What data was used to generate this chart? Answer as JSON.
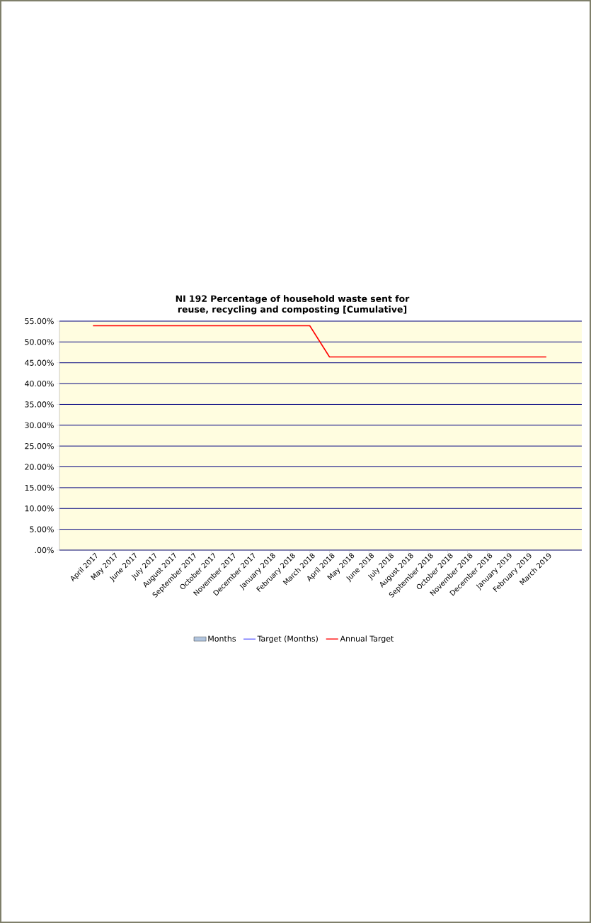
{
  "chart_data": {
    "type": "line",
    "title": "NI 192 Percentage of household waste sent for reuse, recycling and composting [Cumulative]",
    "categories": [
      "April 2017",
      "May 2017",
      "June 2017",
      "July 2017",
      "August 2017",
      "September 2017",
      "October 2017",
      "November 2017",
      "December 2017",
      "January 2018",
      "February 2018",
      "March 2018",
      "April 2018",
      "May 2018",
      "June 2018",
      "July 2018",
      "August 2018",
      "September 2018",
      "October 2018",
      "November 2018",
      "December 2018",
      "January 2019",
      "February 2019",
      "March 2019"
    ],
    "series": [
      {
        "name": "Months",
        "type": "bar",
        "color": "#b0c4de",
        "values": [
          null,
          null,
          null,
          null,
          null,
          null,
          null,
          null,
          null,
          null,
          null,
          null,
          null,
          null,
          null,
          null,
          null,
          null,
          null,
          null,
          null,
          null,
          null,
          null
        ]
      },
      {
        "name": "Target (Months)",
        "color": "#0000ff",
        "values": [
          null,
          null,
          null,
          null,
          null,
          null,
          null,
          null,
          null,
          null,
          null,
          null,
          null,
          null,
          null,
          null,
          null,
          null,
          null,
          null,
          null,
          null,
          null,
          null
        ]
      },
      {
        "name": "Annual Target",
        "color": "#ff0000",
        "values": [
          53.9,
          53.9,
          53.9,
          53.9,
          53.9,
          53.9,
          53.9,
          53.9,
          53.9,
          53.9,
          53.9,
          53.9,
          46.4,
          46.4,
          46.4,
          46.4,
          46.4,
          46.4,
          46.4,
          46.4,
          46.4,
          46.4,
          46.4,
          46.4
        ]
      }
    ],
    "ylim": [
      0,
      55
    ],
    "yticks": [
      {
        "value": 0,
        "label": ".00%"
      },
      {
        "value": 5,
        "label": "5.00%"
      },
      {
        "value": 10,
        "label": "10.00%"
      },
      {
        "value": 15,
        "label": "15.00%"
      },
      {
        "value": 20,
        "label": "20.00%"
      },
      {
        "value": 25,
        "label": "25.00%"
      },
      {
        "value": 30,
        "label": "30.00%"
      },
      {
        "value": 35,
        "label": "35.00%"
      },
      {
        "value": 40,
        "label": "40.00%"
      },
      {
        "value": 45,
        "label": "45.00%"
      },
      {
        "value": 50,
        "label": "50.00%"
      },
      {
        "value": 55,
        "label": "55.00%"
      }
    ],
    "grid": "y",
    "legend": "bottom"
  }
}
